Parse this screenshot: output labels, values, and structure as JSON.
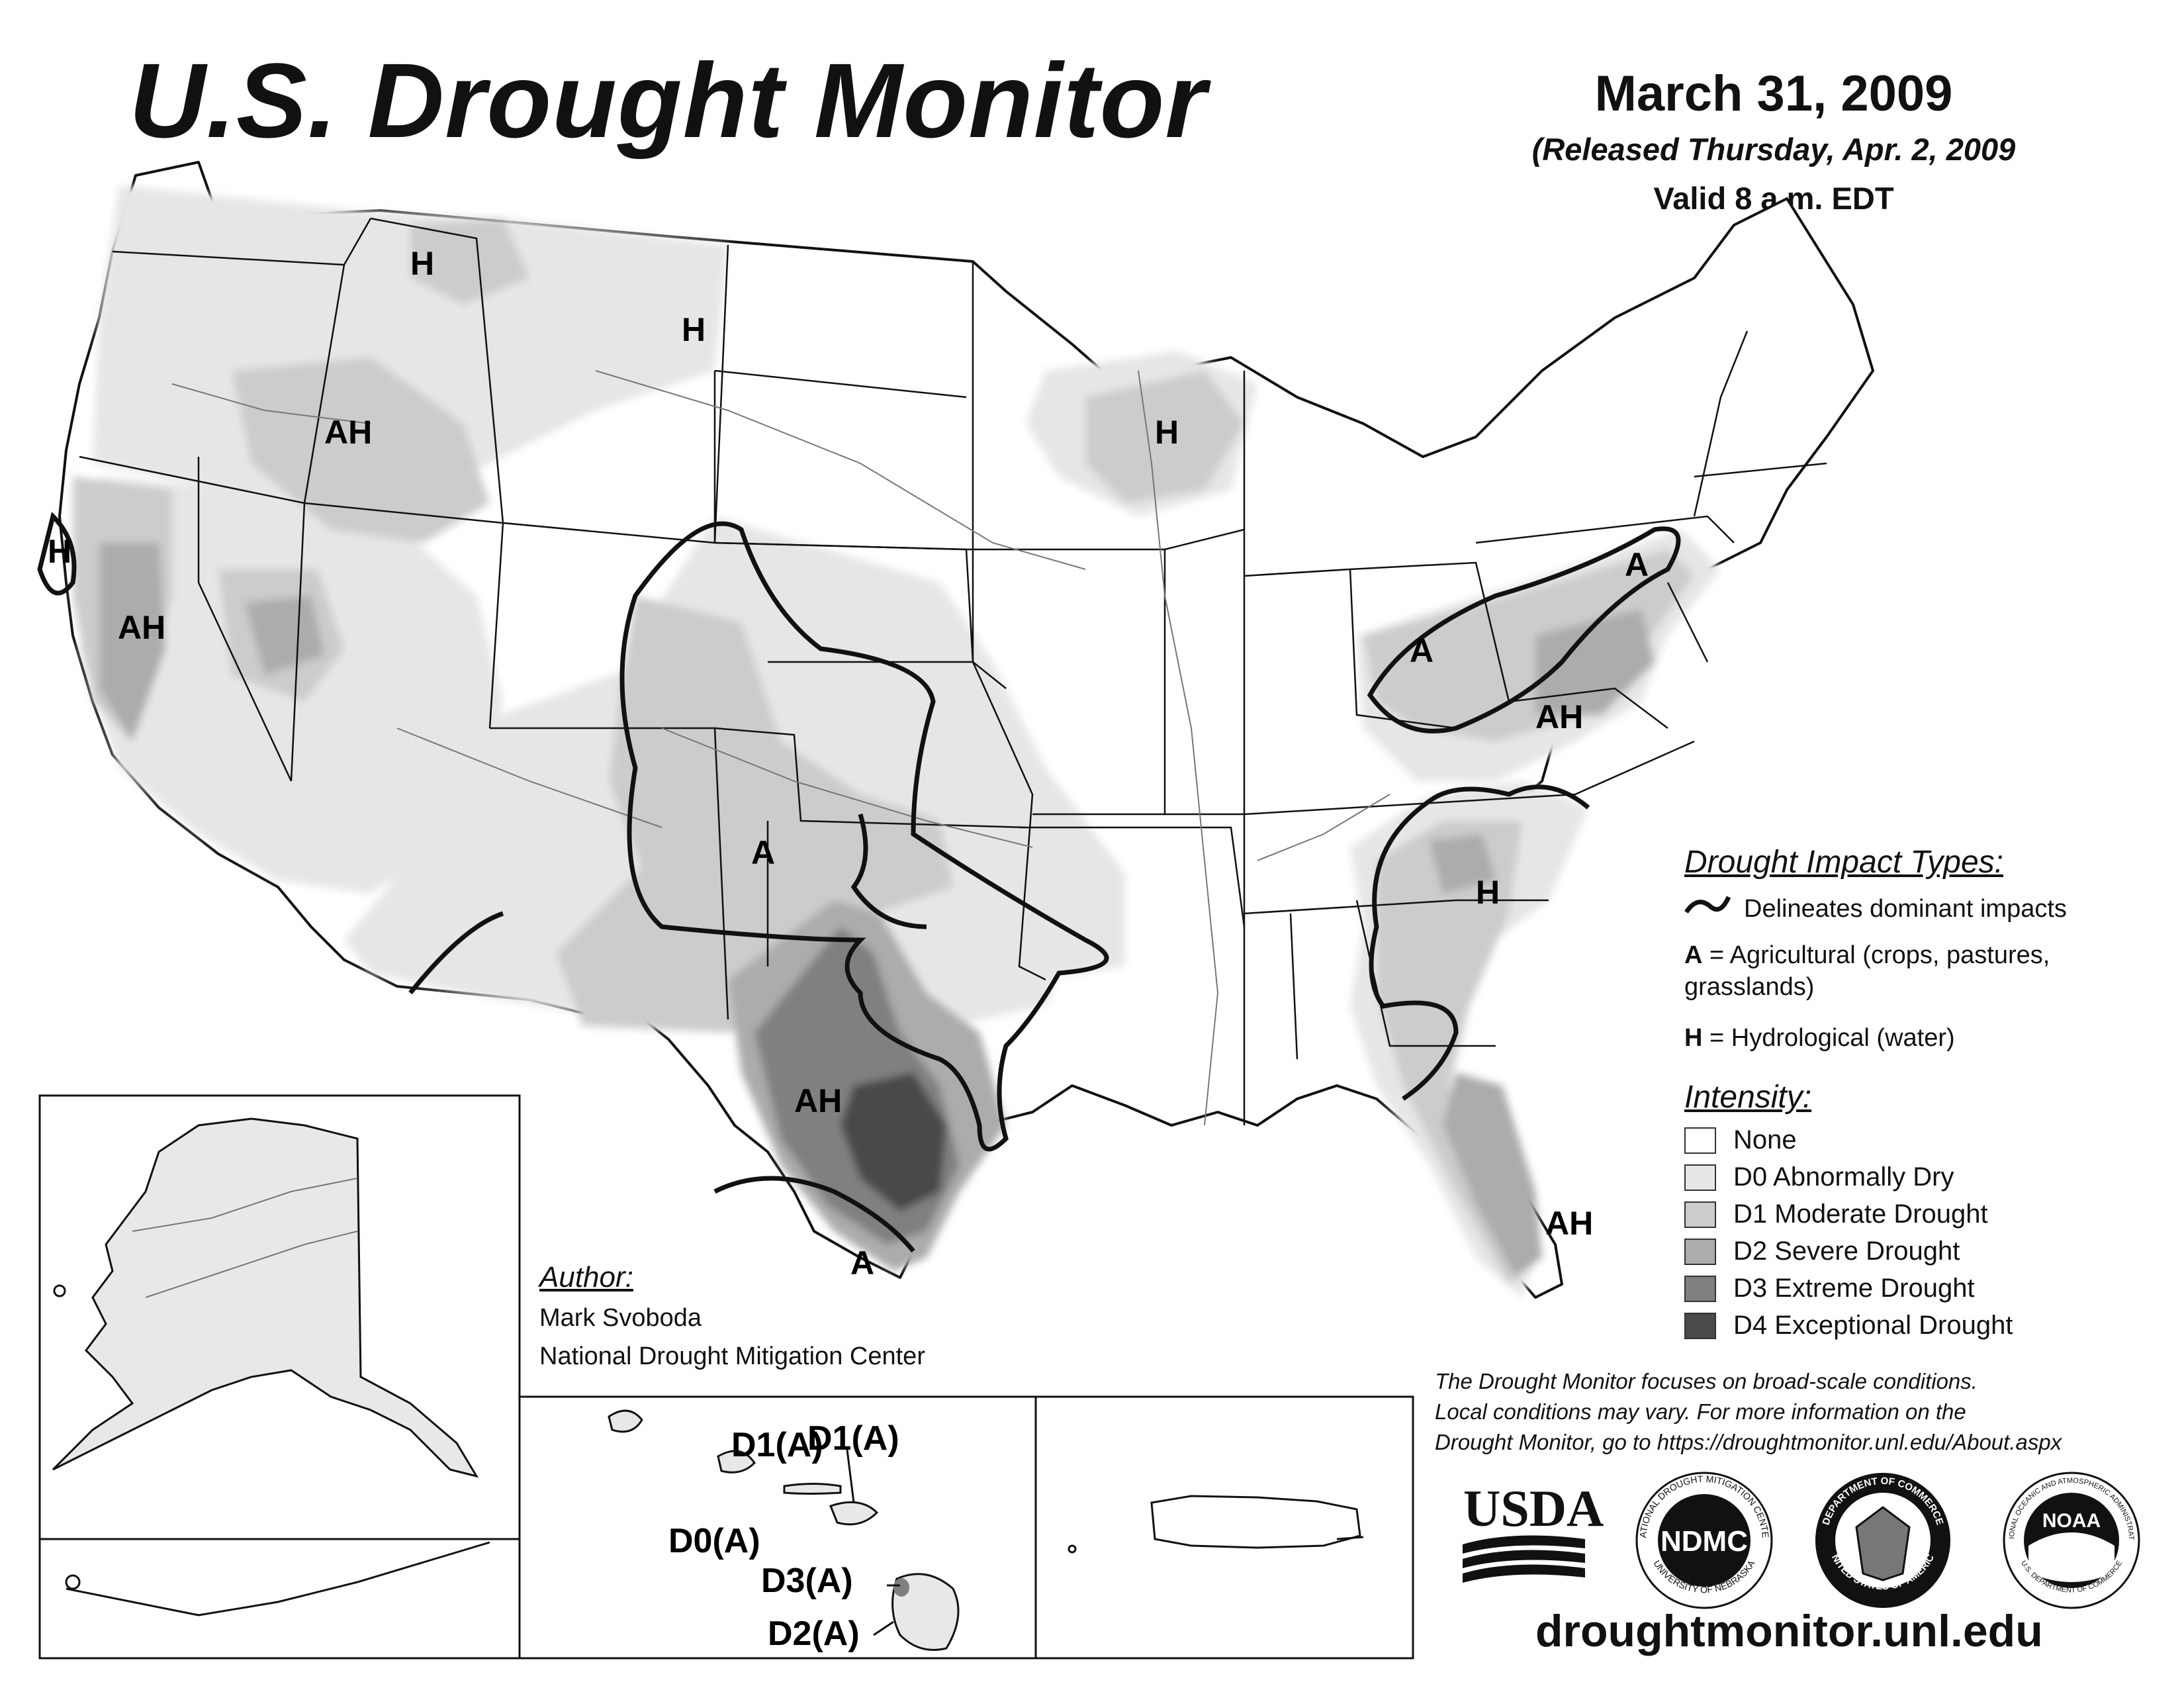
{
  "header": {
    "title": "U.S. Drought Monitor",
    "date": "March 31, 2009",
    "released": "(Released Thursday, Apr. 2, 2009",
    "valid": "Valid 8 a.m. EDT"
  },
  "map_labels": [
    {
      "text": "H",
      "region": "northern-idaho"
    },
    {
      "text": "H",
      "region": "central-montana"
    },
    {
      "text": "AH",
      "region": "southwest-idaho"
    },
    {
      "text": "H",
      "region": "wisconsin"
    },
    {
      "text": "H",
      "region": "northern-california-coast"
    },
    {
      "text": "AH",
      "region": "california"
    },
    {
      "text": "A",
      "region": "pennsylvania-new-jersey"
    },
    {
      "text": "A",
      "region": "ohio-west-virginia"
    },
    {
      "text": "AH",
      "region": "virginia"
    },
    {
      "text": "A",
      "region": "new-mexico-oklahoma"
    },
    {
      "text": "H",
      "region": "carolinas"
    },
    {
      "text": "AH",
      "region": "central-texas"
    },
    {
      "text": "A",
      "region": "south-texas"
    },
    {
      "text": "AH",
      "region": "florida"
    }
  ],
  "hawaii_labels": [
    {
      "text": "D1(A)",
      "island": "oahu"
    },
    {
      "text": "D1(A)",
      "island": "maui"
    },
    {
      "text": "D0(A)",
      "island": "molokai"
    },
    {
      "text": "D3(A)",
      "island": "big-island-north"
    },
    {
      "text": "D2(A)",
      "island": "big-island-south"
    }
  ],
  "legend": {
    "impact_heading": "Drought Impact Types:",
    "delineates": "Delineates dominant impacts",
    "agricultural_key": "A",
    "agricultural_text": "= Agricultural (crops, pastures,",
    "agricultural_text2": "grasslands)",
    "hydrological_key": "H",
    "hydrological_text": "= Hydrological (water)",
    "intensity_heading": "Intensity:",
    "intensity": [
      {
        "label": "None",
        "color": "#ffffff"
      },
      {
        "label": "D0 Abnormally Dry",
        "color": "#e6e6e6"
      },
      {
        "label": "D1 Moderate Drought",
        "color": "#cccccc"
      },
      {
        "label": "D2 Severe Drought",
        "color": "#acacac"
      },
      {
        "label": "D3 Extreme Drought",
        "color": "#808080"
      },
      {
        "label": "D4 Exceptional Drought",
        "color": "#4a4a4a"
      }
    ]
  },
  "author": {
    "heading": "Author:",
    "name": "Mark Svoboda",
    "org": "National Drought Mitigation Center"
  },
  "disclaimer": [
    "The Drought Monitor focuses on broad-scale conditions.",
    "Local conditions may vary. For more information on the",
    "Drought Monitor, go to https://droughtmonitor.unl.edu/About.aspx"
  ],
  "logos": [
    {
      "name": "USDA",
      "text": "USDA"
    },
    {
      "name": "NDMC",
      "text": "NDMC",
      "ring_top": "NATIONAL DROUGHT MITIGATION CENTER",
      "ring_bottom": "UNIVERSITY OF NEBRASKA"
    },
    {
      "name": "Department of Commerce",
      "ring_top": "DEPARTMENT OF COMMERCE",
      "ring_bottom": "UNITED STATES OF AMERICA"
    },
    {
      "name": "NOAA",
      "text": "NOAA",
      "ring_top": "NATIONAL OCEANIC AND ATMOSPHERIC ADMINISTRATION",
      "ring_bottom": "U.S. DEPARTMENT OF COMMERCE"
    }
  ],
  "website": "droughtmonitor.unl.edu"
}
